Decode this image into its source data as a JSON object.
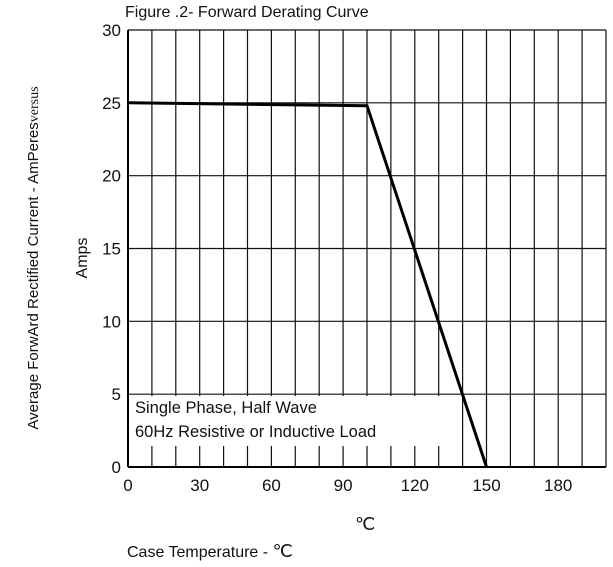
{
  "title": "Figure .2- Forward Derating Curve",
  "y_label_text": "Average ForwArd Rectified Current  -  AmPeres",
  "y_label_serif": "versus",
  "y_label_unit": "Amps",
  "x_unit_mark": "℃",
  "x_label_text": "Case Temperature  -",
  "x_label_unit": "℃",
  "annotation": {
    "line1": "Single Phase, Half Wave",
    "line2": "60Hz Resistive or Inductive Load"
  },
  "chart_data": {
    "type": "line",
    "title": "Figure .2- Forward Derating Curve",
    "xlabel": "Case Temperature  -  ℃",
    "ylabel": "Average ForwArd Rectified Current  -  AmPeres versus Amps",
    "x_ticks": [
      0,
      30,
      60,
      90,
      120,
      150,
      180
    ],
    "y_ticks": [
      0,
      5,
      10,
      15,
      20,
      25,
      30
    ],
    "xlim": [
      0,
      200
    ],
    "ylim": [
      0,
      30
    ],
    "grid": true,
    "series": [
      {
        "x": [
          0,
          100,
          150
        ],
        "y": [
          25,
          24.8,
          0
        ]
      }
    ],
    "annotations": [
      "Single Phase, Half Wave",
      "60Hz Resistive or Inductive Load"
    ]
  }
}
